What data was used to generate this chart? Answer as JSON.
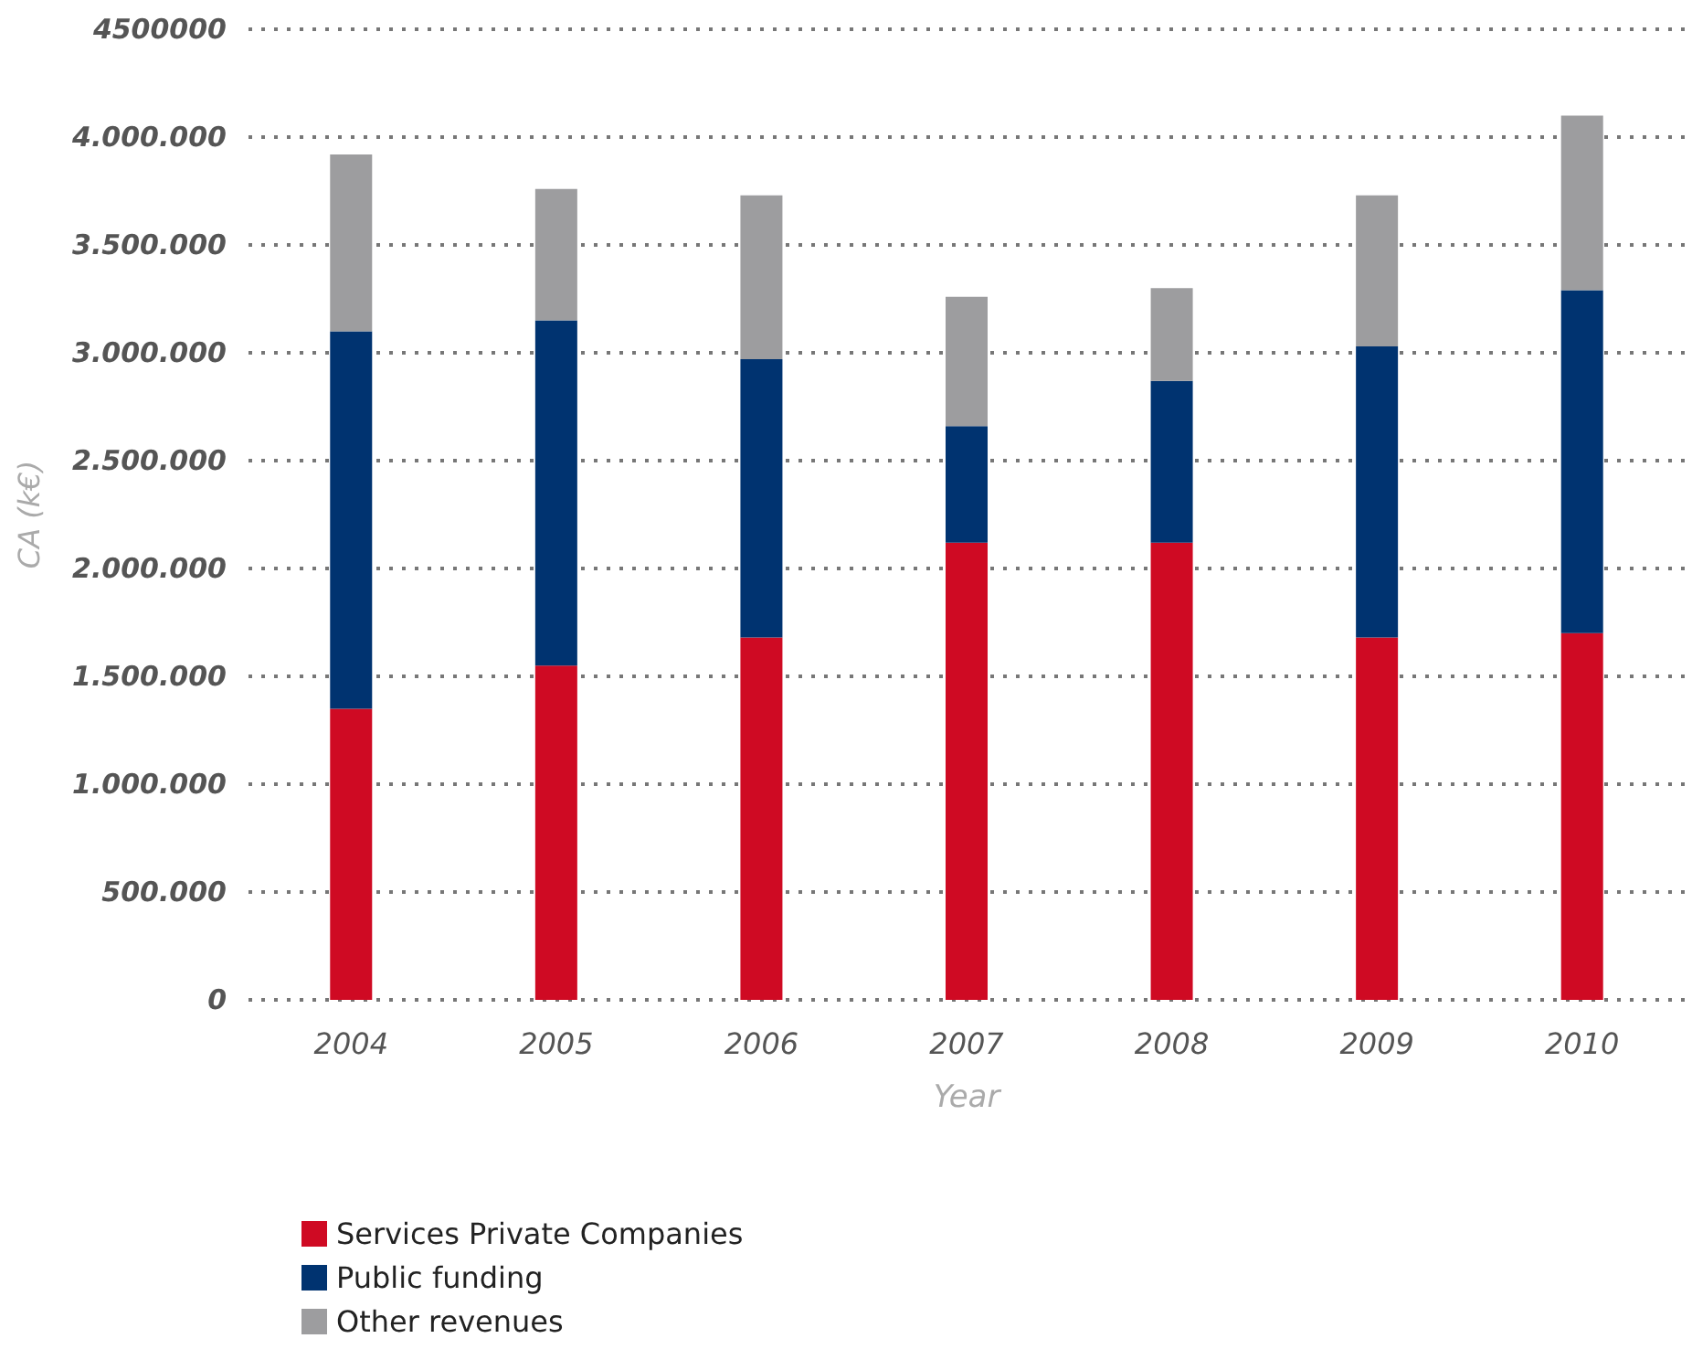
{
  "chart_data": {
    "type": "bar",
    "stacked": true,
    "xlabel": "Year",
    "ylabel": "CA (k€)",
    "categories": [
      "2004",
      "2005",
      "2006",
      "2007",
      "2008",
      "2009",
      "2010"
    ],
    "series": [
      {
        "name": "Services Private Companies",
        "color": "#cf0a23",
        "values": [
          1350000,
          1550000,
          1680000,
          2120000,
          2120000,
          1680000,
          1700000
        ]
      },
      {
        "name": "Public funding",
        "color": "#003370",
        "values": [
          1750000,
          1600000,
          1290000,
          540000,
          750000,
          1350000,
          1590000
        ]
      },
      {
        "name": "Other revenues",
        "color": "#9d9d9f",
        "values": [
          820000,
          610000,
          760000,
          600000,
          430000,
          700000,
          810000
        ]
      }
    ],
    "ylim": [
      0,
      4500000
    ],
    "yticks": [
      {
        "value": 0,
        "label": "0"
      },
      {
        "value": 500000,
        "label": "500.000"
      },
      {
        "value": 1000000,
        "label": "1.000.000"
      },
      {
        "value": 1500000,
        "label": "1.500.000"
      },
      {
        "value": 2000000,
        "label": "2.000.000"
      },
      {
        "value": 2500000,
        "label": "2.500.000"
      },
      {
        "value": 3000000,
        "label": "3.000.000"
      },
      {
        "value": 3500000,
        "label": "3.500.000"
      },
      {
        "value": 4000000,
        "label": "4.000.000"
      },
      {
        "value": 4500000,
        "label": "4500000"
      }
    ],
    "grid": "y",
    "legend": "bottom left"
  }
}
